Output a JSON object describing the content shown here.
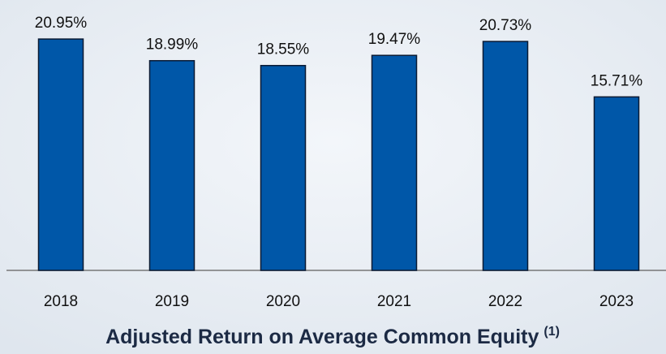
{
  "chart_data": {
    "type": "bar",
    "title": "Adjusted Return on Average Common Equity",
    "title_note": "(1)",
    "categories": [
      "2018",
      "2019",
      "2020",
      "2021",
      "2022",
      "2023"
    ],
    "values": [
      20.95,
      18.99,
      18.55,
      19.47,
      20.73,
      15.71
    ],
    "value_labels": [
      "20.95%",
      "18.99%",
      "18.55%",
      "19.47%",
      "20.73%",
      "15.71%"
    ],
    "color": "#0057a8"
  }
}
